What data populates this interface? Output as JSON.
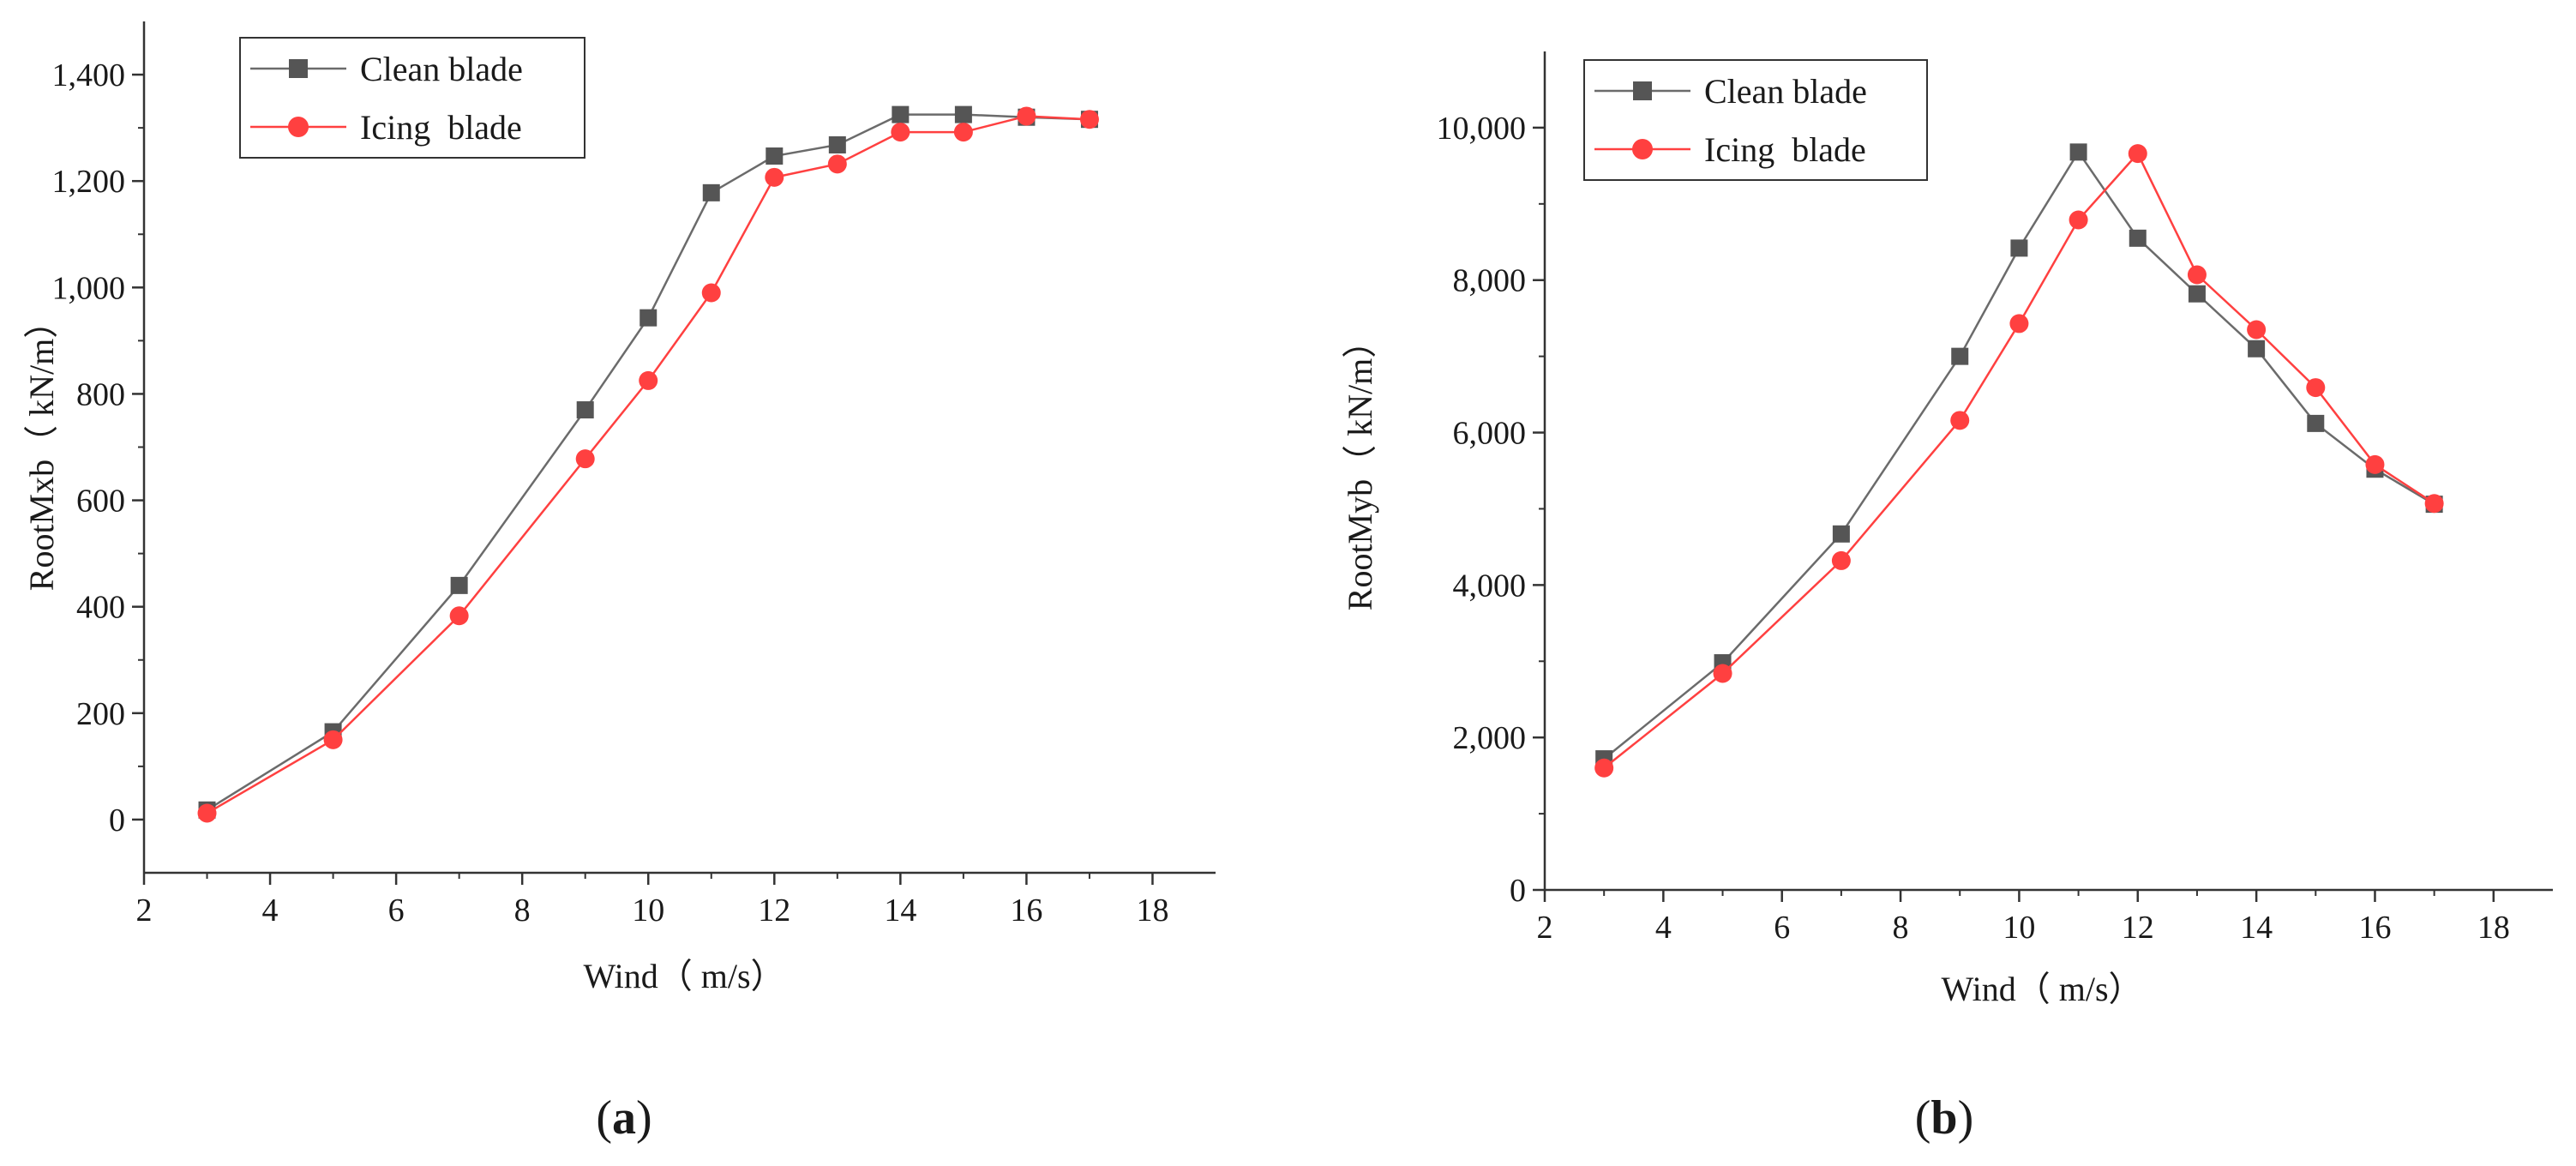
{
  "chart_data": [
    {
      "type": "line",
      "panel": "a",
      "caption_letter": "a",
      "xlabel": "Wind（ m/s）",
      "ylabel": "RootMxb（ kN/m）",
      "xlim": [
        2,
        19
      ],
      "ylim": [
        -100,
        1500
      ],
      "x_ticks": [
        2,
        4,
        6,
        8,
        10,
        12,
        14,
        16,
        18
      ],
      "y_ticks": [
        0,
        200,
        400,
        600,
        800,
        1000,
        1200,
        1400
      ],
      "x_tick_labels": [
        "2",
        "4",
        "6",
        "8",
        "10",
        "12",
        "14",
        "16",
        "18"
      ],
      "y_tick_labels": [
        "0",
        "200",
        "400",
        "600",
        "800",
        "1,000",
        "1,200",
        "1,400"
      ],
      "legend": {
        "position": "top-left"
      },
      "x": [
        3,
        5,
        7,
        9,
        10,
        11,
        12,
        13,
        14,
        15,
        16,
        17
      ],
      "series": [
        {
          "name": "Clean blade",
          "color": "#6b6b6b",
          "marker": "square",
          "values": [
            18,
            165,
            440,
            770,
            943,
            1178,
            1247,
            1268,
            1325,
            1325,
            1320,
            1316
          ]
        },
        {
          "name": "Icing  blade",
          "color": "#ff4040",
          "marker": "circle",
          "values": [
            12,
            150,
            383,
            678,
            825,
            990,
            1207,
            1232,
            1292,
            1292,
            1322,
            1316
          ]
        }
      ]
    },
    {
      "type": "line",
      "panel": "b",
      "caption_letter": "b",
      "xlabel": "Wind（ m/s）",
      "ylabel": "RootMyb（ kN/m）",
      "xlim": [
        2,
        19
      ],
      "ylim": [
        0,
        11000
      ],
      "x_ticks": [
        2,
        4,
        6,
        8,
        10,
        12,
        14,
        16,
        18
      ],
      "y_ticks": [
        0,
        2000,
        4000,
        6000,
        8000,
        10000
      ],
      "x_tick_labels": [
        "2",
        "4",
        "6",
        "8",
        "10",
        "12",
        "14",
        "16",
        "18"
      ],
      "y_tick_labels": [
        "0",
        "2,000",
        "4,000",
        "6,000",
        "8,000",
        "10,000"
      ],
      "legend": {
        "position": "top-left"
      },
      "x": [
        3,
        5,
        7,
        9,
        10,
        11,
        12,
        13,
        14,
        15,
        16,
        17
      ],
      "series": [
        {
          "name": "Clean blade",
          "color": "#6b6b6b",
          "marker": "square",
          "values": [
            1720,
            2980,
            4670,
            7000,
            8420,
            9680,
            8550,
            7820,
            7100,
            6120,
            5520,
            5060
          ]
        },
        {
          "name": "Icing  blade",
          "color": "#ff4040",
          "marker": "circle",
          "values": [
            1600,
            2840,
            4320,
            6160,
            7430,
            8790,
            9660,
            8070,
            7350,
            6590,
            5580,
            5070
          ]
        }
      ]
    }
  ]
}
